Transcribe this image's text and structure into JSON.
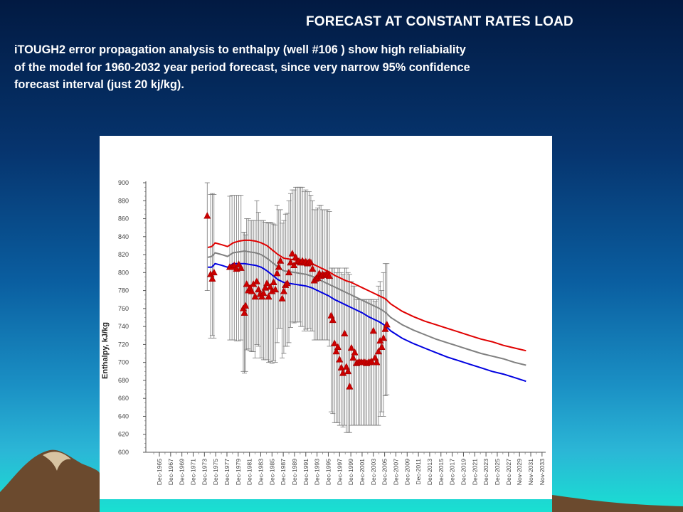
{
  "slide": {
    "title": "FORECAST AT CONSTANT RATES LOAD",
    "description_lines": [
      "iTOUGH2 error propagation analysis to enthalpy (well #106 ) show high reliabiality",
      "of the model for 1960-2032 year period forecast, since very narrow 95% confidence",
      "forecast  interval (just 20 kj/kg)."
    ],
    "colors": {
      "title_text": "#ffffff",
      "background_top": "#021a42",
      "background_bottom": "#19e0d2"
    }
  },
  "chart_data": {
    "type": "scatter",
    "ylabel": "Enthalpy, kJ/kg",
    "xlabel": "",
    "ylim": [
      600,
      900
    ],
    "xlim": [
      1963.5,
      2034.5
    ],
    "y_ticks": [
      600,
      620,
      640,
      660,
      680,
      700,
      720,
      740,
      760,
      780,
      800,
      820,
      840,
      860,
      880,
      900
    ],
    "x_ticks": [
      "Dec-1965",
      "Dec-1967",
      "Dec-1969",
      "Dec-1971",
      "Dec-1973",
      "Dec-1975",
      "Dec-1977",
      "Dec-1979",
      "Dec-1981",
      "Dec-1983",
      "Dec-1985",
      "Dec-1987",
      "Dec-1989",
      "Dec-1991",
      "Dec-1993",
      "Dec-1995",
      "Dec-1997",
      "Dec-1999",
      "Dec-2001",
      "Dec-2003",
      "Dec-2005",
      "Dec-2007",
      "Dec-2009",
      "Dec-2011",
      "Dec-2013",
      "Dec-2015",
      "Dec-2017",
      "Dec-2019",
      "Dec-2021",
      "Dec-2023",
      "Dec-2025",
      "Dec-2027",
      "Nov-2029",
      "Nov-2031",
      "Nov-2033"
    ],
    "x_tick_years": [
      1965.9,
      1967.9,
      1969.9,
      1971.9,
      1973.9,
      1975.9,
      1977.9,
      1979.9,
      1981.9,
      1983.9,
      1985.9,
      1987.9,
      1989.9,
      1991.9,
      1993.9,
      1995.9,
      1997.9,
      1999.9,
      2001.9,
      2003.9,
      2005.9,
      2007.9,
      2009.9,
      2011.9,
      2013.9,
      2015.9,
      2017.9,
      2019.9,
      2021.9,
      2023.9,
      2025.9,
      2027.9,
      2029.85,
      2031.85,
      2033.85
    ],
    "grid": false,
    "series": [
      {
        "role": "upper-95-confidence",
        "color": "#e00000",
        "points": [
          [
            1974.5,
            828
          ],
          [
            1975.2,
            829
          ],
          [
            1975.8,
            833
          ],
          [
            1977,
            831
          ],
          [
            1978,
            829
          ],
          [
            1979,
            833
          ],
          [
            1980,
            835
          ],
          [
            1981,
            836
          ],
          [
            1982,
            836
          ],
          [
            1983,
            835
          ],
          [
            1984,
            833
          ],
          [
            1985,
            830
          ],
          [
            1986,
            825
          ],
          [
            1987,
            820
          ],
          [
            1988,
            816
          ],
          [
            1989,
            815
          ],
          [
            1990,
            814
          ],
          [
            1991,
            813
          ],
          [
            1992,
            812
          ],
          [
            1993,
            810
          ],
          [
            1994,
            807
          ],
          [
            1995,
            804
          ],
          [
            1996,
            801
          ],
          [
            1997,
            797
          ],
          [
            1998,
            794
          ],
          [
            1999,
            791
          ],
          [
            2000,
            789
          ],
          [
            2001,
            786
          ],
          [
            2002,
            783
          ],
          [
            2003,
            780
          ],
          [
            2004,
            777
          ],
          [
            2005,
            774
          ],
          [
            2006,
            771
          ],
          [
            2007,
            765
          ],
          [
            2009,
            757
          ],
          [
            2011,
            751
          ],
          [
            2013,
            746
          ],
          [
            2015,
            742
          ],
          [
            2017,
            738
          ],
          [
            2019,
            734
          ],
          [
            2021,
            730
          ],
          [
            2023,
            726
          ],
          [
            2025,
            723
          ],
          [
            2027,
            719
          ],
          [
            2029,
            716
          ],
          [
            2031,
            713
          ]
        ]
      },
      {
        "role": "model-mean",
        "color": "#808080",
        "points": [
          [
            1974.5,
            817
          ],
          [
            1975.2,
            818
          ],
          [
            1975.8,
            822
          ],
          [
            1977,
            820
          ],
          [
            1978,
            818
          ],
          [
            1979,
            822
          ],
          [
            1980,
            823
          ],
          [
            1981,
            824
          ],
          [
            1982,
            823
          ],
          [
            1983,
            822
          ],
          [
            1984,
            820
          ],
          [
            1985,
            816
          ],
          [
            1986,
            811
          ],
          [
            1987,
            806
          ],
          [
            1988,
            802
          ],
          [
            1989,
            801
          ],
          [
            1990,
            800
          ],
          [
            1991,
            799
          ],
          [
            1992,
            798
          ],
          [
            1993,
            796
          ],
          [
            1994,
            793
          ],
          [
            1995,
            790
          ],
          [
            1996,
            787
          ],
          [
            1997,
            784
          ],
          [
            1998,
            781
          ],
          [
            1999,
            778
          ],
          [
            2000,
            775
          ],
          [
            2001,
            772
          ],
          [
            2002,
            769
          ],
          [
            2003,
            766
          ],
          [
            2004,
            763
          ],
          [
            2005,
            760
          ],
          [
            2006,
            756
          ],
          [
            2007,
            750
          ],
          [
            2009,
            742
          ],
          [
            2011,
            736
          ],
          [
            2013,
            731
          ],
          [
            2015,
            726
          ],
          [
            2017,
            722
          ],
          [
            2019,
            718
          ],
          [
            2021,
            714
          ],
          [
            2023,
            710
          ],
          [
            2025,
            707
          ],
          [
            2027,
            704
          ],
          [
            2029,
            700
          ],
          [
            2031,
            697
          ]
        ]
      },
      {
        "role": "lower-95-confidence",
        "color": "#0000e0",
        "points": [
          [
            1974.5,
            806
          ],
          [
            1975.2,
            806
          ],
          [
            1975.8,
            810
          ],
          [
            1977,
            808
          ],
          [
            1978,
            806
          ],
          [
            1979,
            810
          ],
          [
            1980,
            810
          ],
          [
            1981,
            810
          ],
          [
            1982,
            809
          ],
          [
            1983,
            808
          ],
          [
            1984,
            806
          ],
          [
            1985,
            802
          ],
          [
            1986,
            797
          ],
          [
            1987,
            792
          ],
          [
            1988,
            789
          ],
          [
            1989,
            788
          ],
          [
            1990,
            787
          ],
          [
            1991,
            786
          ],
          [
            1992,
            785
          ],
          [
            1993,
            783
          ],
          [
            1994,
            780
          ],
          [
            1995,
            777
          ],
          [
            1996,
            774
          ],
          [
            1997,
            770
          ],
          [
            1998,
            767
          ],
          [
            1999,
            764
          ],
          [
            2000,
            761
          ],
          [
            2001,
            758
          ],
          [
            2002,
            755
          ],
          [
            2003,
            751
          ],
          [
            2004,
            748
          ],
          [
            2005,
            745
          ],
          [
            2006,
            741
          ],
          [
            2007,
            735
          ],
          [
            2009,
            727
          ],
          [
            2011,
            721
          ],
          [
            2013,
            716
          ],
          [
            2015,
            711
          ],
          [
            2017,
            706
          ],
          [
            2019,
            702
          ],
          [
            2021,
            698
          ],
          [
            2023,
            694
          ],
          [
            2025,
            690
          ],
          [
            2027,
            687
          ],
          [
            2029,
            683
          ],
          [
            2031,
            679
          ]
        ]
      }
    ],
    "measurements": {
      "color": "#cc0000",
      "points": [
        [
          1974.4,
          863,
          780,
          900
        ],
        [
          1975.0,
          798,
          727,
          887
        ],
        [
          1975.3,
          793,
          730,
          888
        ],
        [
          1975.6,
          800,
          727,
          887
        ],
        [
          1978.4,
          806,
          725,
          885
        ],
        [
          1978.8,
          806,
          725,
          886
        ],
        [
          1979.2,
          808,
          725,
          886
        ],
        [
          1979.6,
          804,
          724,
          886
        ],
        [
          1980.0,
          809,
          724,
          886
        ],
        [
          1980.4,
          805,
          725,
          886
        ],
        [
          1980.8,
          760,
          690,
          845
        ],
        [
          1981.0,
          755,
          688,
          845
        ],
        [
          1981.2,
          763,
          690,
          842
        ],
        [
          1981.4,
          787,
          714,
          860
        ],
        [
          1981.7,
          780,
          715,
          860
        ],
        [
          1982.0,
          783,
          713,
          858
        ],
        [
          1982.3,
          779,
          712,
          858
        ],
        [
          1982.6,
          787,
          712,
          858
        ],
        [
          1982.9,
          773,
          705,
          858
        ],
        [
          1983.2,
          790,
          720,
          880
        ],
        [
          1983.5,
          781,
          718,
          867
        ],
        [
          1983.8,
          776,
          705,
          858
        ],
        [
          1984.1,
          773,
          705,
          858
        ],
        [
          1984.4,
          777,
          703,
          858
        ],
        [
          1984.7,
          783,
          703,
          856
        ],
        [
          1985.0,
          788,
          703,
          856
        ],
        [
          1985.3,
          773,
          700,
          855
        ],
        [
          1985.6,
          784,
          701,
          856
        ],
        [
          1985.9,
          779,
          699,
          855
        ],
        [
          1986.2,
          789,
          702,
          854
        ],
        [
          1986.5,
          781,
          700,
          853
        ],
        [
          1986.8,
          799,
          722,
          875
        ],
        [
          1987.1,
          806,
          738,
          870
        ],
        [
          1987.4,
          813,
          738,
          870
        ],
        [
          1987.7,
          771,
          705,
          855
        ],
        [
          1988.0,
          779,
          710,
          858
        ],
        [
          1988.3,
          786,
          718,
          865
        ],
        [
          1988.6,
          788,
          718,
          866
        ],
        [
          1988.9,
          800,
          722,
          880
        ],
        [
          1989.2,
          811,
          739,
          888
        ],
        [
          1989.5,
          821,
          745,
          892
        ],
        [
          1989.8,
          808,
          744,
          892
        ],
        [
          1990.1,
          817,
          745,
          895
        ],
        [
          1990.4,
          812,
          745,
          895
        ],
        [
          1990.7,
          813,
          745,
          895
        ],
        [
          1991.0,
          811,
          740,
          895
        ],
        [
          1991.3,
          813,
          740,
          895
        ],
        [
          1991.6,
          811,
          735,
          890
        ],
        [
          1991.9,
          812,
          737,
          892
        ],
        [
          1992.2,
          810,
          735,
          890
        ],
        [
          1992.5,
          812,
          738,
          890
        ],
        [
          1992.8,
          811,
          735,
          886
        ],
        [
          1993.1,
          804,
          735,
          880
        ],
        [
          1993.4,
          791,
          725,
          870
        ],
        [
          1993.7,
          793,
          725,
          870
        ],
        [
          1994.0,
          794,
          725,
          872
        ],
        [
          1994.3,
          799,
          725,
          875
        ],
        [
          1994.6,
          796,
          725,
          875
        ],
        [
          1994.9,
          798,
          725,
          870
        ],
        [
          1995.2,
          797,
          725,
          870
        ],
        [
          1995.5,
          798,
          725,
          870
        ],
        [
          1995.8,
          798,
          725,
          870
        ],
        [
          1996.1,
          796,
          718,
          868
        ],
        [
          1996.4,
          752,
          645,
          805
        ],
        [
          1996.7,
          747,
          643,
          805
        ],
        [
          1997.0,
          721,
          633,
          805
        ],
        [
          1997.3,
          712,
          633,
          800
        ],
        [
          1997.6,
          717,
          633,
          805
        ],
        [
          1997.9,
          703,
          630,
          805
        ],
        [
          1998.2,
          694,
          630,
          800
        ],
        [
          1998.5,
          688,
          628,
          798
        ],
        [
          1998.8,
          732,
          630,
          805
        ],
        [
          1999.1,
          695,
          622,
          805
        ],
        [
          1999.4,
          690,
          622,
          800
        ],
        [
          1999.7,
          673,
          622,
          798
        ],
        [
          2000.0,
          716,
          630,
          790
        ],
        [
          2000.3,
          705,
          630,
          785
        ],
        [
          2000.6,
          711,
          630,
          785
        ],
        [
          2000.9,
          699,
          630,
          770
        ],
        [
          2001.2,
          700,
          630,
          770
        ],
        [
          2001.5,
          700,
          630,
          770
        ],
        [
          2001.8,
          700,
          630,
          770
        ],
        [
          2002.1,
          700,
          630,
          770
        ],
        [
          2002.4,
          700,
          630,
          770
        ],
        [
          2002.7,
          699,
          630,
          770
        ],
        [
          2003.0,
          700,
          630,
          770
        ],
        [
          2003.3,
          700,
          630,
          770
        ],
        [
          2003.6,
          701,
          630,
          770
        ],
        [
          2003.9,
          735,
          630,
          770
        ],
        [
          2004.2,
          705,
          630,
          768
        ],
        [
          2004.5,
          700,
          630,
          770
        ],
        [
          2004.8,
          712,
          630,
          785
        ],
        [
          2005.1,
          724,
          640,
          790
        ],
        [
          2005.4,
          717,
          645,
          780
        ],
        [
          2005.7,
          727,
          640,
          800
        ],
        [
          2006.0,
          737,
          663,
          810
        ],
        [
          2006.3,
          742,
          664,
          810
        ]
      ]
    }
  }
}
